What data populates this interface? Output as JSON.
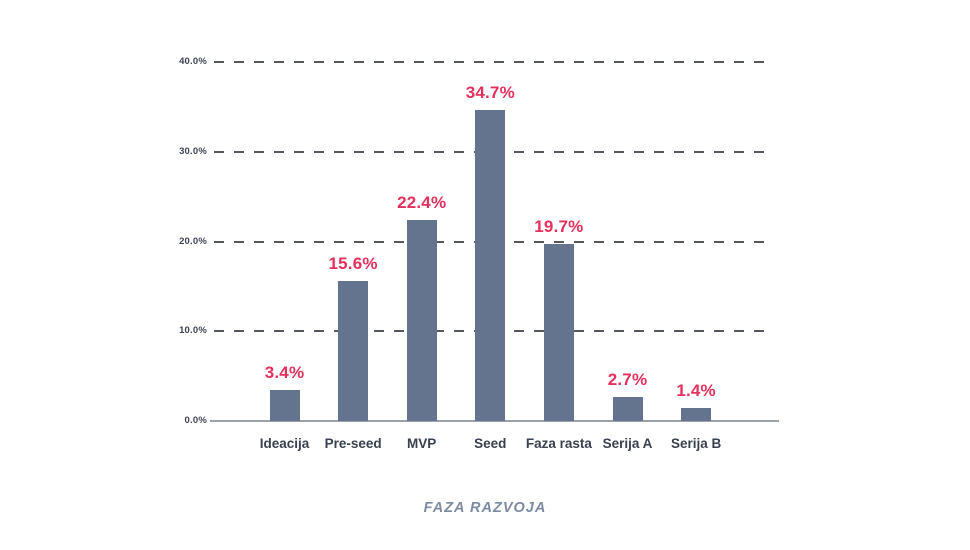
{
  "chart_data": {
    "type": "bar",
    "categories": [
      "Ideacija",
      "Pre-seed",
      "MVP",
      "Seed",
      "Faza rasta",
      "Serija A",
      "Serija B"
    ],
    "values": [
      3.4,
      15.6,
      22.4,
      34.7,
      19.7,
      2.7,
      1.4
    ],
    "value_labels": [
      "3.4%",
      "15.6%",
      "22.4%",
      "34.7%",
      "19.7%",
      "2.7%",
      "1.4%"
    ],
    "title": "",
    "xlabel": "FAZA RAZVOJA",
    "ylabel": "",
    "ylim": [
      0,
      40
    ],
    "yticks": [
      0,
      10,
      20,
      30,
      40
    ],
    "ytick_labels": [
      "0.0%",
      "10.0%",
      "20.0%",
      "30.0%",
      "40.0%"
    ],
    "grid": "horizontal-dashed",
    "legend": "none",
    "colors": {
      "bar": "#64748e",
      "value_label": "#e4305c",
      "tick_label": "#3d4456",
      "category_label": "#39404f",
      "grid_line": "#55575e",
      "axis_line": "#9aa1a9",
      "axis_title": "#7d8ba2",
      "background": "#ffffff"
    }
  }
}
